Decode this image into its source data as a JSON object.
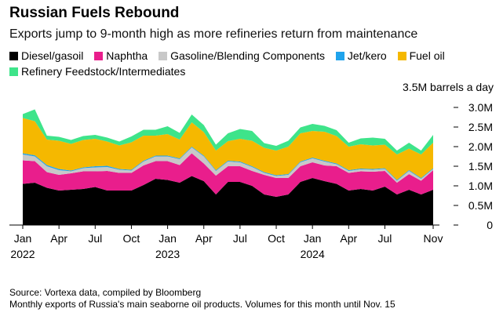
{
  "header": {
    "title": "Russian Fuels Rebound",
    "subtitle": "Exports jump to 9-month high as more refineries return from maintenance"
  },
  "legend": [
    {
      "name": "Diesel/gasoil",
      "color": "#000000"
    },
    {
      "name": "Naphtha",
      "color": "#e91e8c"
    },
    {
      "name": "Gasoline/Blending Components",
      "color": "#c8c8c8"
    },
    {
      "name": "Jet/kero",
      "color": "#1fa3ec"
    },
    {
      "name": "Fuel oil",
      "color": "#f5b800"
    },
    {
      "name": "Refinery Feedstock/Intermediates",
      "color": "#3ee48a"
    }
  ],
  "footer": {
    "source": "Source: Vortexa data, compiled by Bloomberg",
    "note": "Monthly exports of Russia's main seaborne oil products. Volumes for this month until Nov. 15"
  },
  "chart_data": {
    "type": "area",
    "stacked": true,
    "unit_label": "3.5M barrels a day",
    "ylim": [
      0,
      3.5
    ],
    "y_ticks": [
      {
        "value": 0,
        "label": "0"
      },
      {
        "value": 0.5,
        "label": "0.5M"
      },
      {
        "value": 1.0,
        "label": "1.0M"
      },
      {
        "value": 1.5,
        "label": "1.5M"
      },
      {
        "value": 2.0,
        "label": "2.0M"
      },
      {
        "value": 2.5,
        "label": "2.5M"
      },
      {
        "value": 3.0,
        "label": "3.0M"
      }
    ],
    "x_ticks": [
      {
        "index": 0,
        "month": "Jan",
        "year": "2022"
      },
      {
        "index": 3,
        "month": "Apr",
        "year": ""
      },
      {
        "index": 6,
        "month": "Jul",
        "year": ""
      },
      {
        "index": 9,
        "month": "Oct",
        "year": ""
      },
      {
        "index": 12,
        "month": "Jan",
        "year": "2023"
      },
      {
        "index": 15,
        "month": "Apr",
        "year": ""
      },
      {
        "index": 18,
        "month": "Jul",
        "year": ""
      },
      {
        "index": 21,
        "month": "Oct",
        "year": ""
      },
      {
        "index": 24,
        "month": "Jan",
        "year": "2024"
      },
      {
        "index": 27,
        "month": "Apr",
        "year": ""
      },
      {
        "index": 30,
        "month": "Jul",
        "year": ""
      },
      {
        "index": 34,
        "month": "Nov",
        "year": ""
      }
    ],
    "series": [
      {
        "name": "Diesel/gasoil",
        "color": "#000000",
        "values": [
          1.05,
          1.08,
          0.95,
          0.88,
          0.9,
          0.92,
          0.97,
          0.88,
          0.88,
          0.88,
          1.02,
          1.18,
          1.15,
          1.08,
          1.25,
          1.12,
          0.78,
          1.1,
          1.1,
          1.0,
          0.78,
          0.72,
          0.78,
          1.1,
          1.2,
          1.12,
          1.05,
          0.88,
          0.92,
          0.88,
          0.98,
          0.78,
          0.9,
          0.78,
          0.9
        ]
      },
      {
        "name": "Naphtha",
        "color": "#e91e8c",
        "values": [
          0.6,
          0.55,
          0.4,
          0.4,
          0.42,
          0.45,
          0.4,
          0.5,
          0.45,
          0.45,
          0.5,
          0.45,
          0.48,
          0.45,
          0.58,
          0.45,
          0.48,
          0.4,
          0.4,
          0.38,
          0.5,
          0.48,
          0.42,
          0.4,
          0.4,
          0.4,
          0.45,
          0.45,
          0.45,
          0.48,
          0.4,
          0.3,
          0.4,
          0.35,
          0.5
        ]
      },
      {
        "name": "Gasoline/Blending Components",
        "color": "#c8c8c8",
        "values": [
          0.15,
          0.12,
          0.15,
          0.12,
          0.05,
          0.08,
          0.1,
          0.1,
          0.08,
          0.06,
          0.1,
          0.12,
          0.12,
          0.15,
          0.15,
          0.18,
          0.12,
          0.12,
          0.1,
          0.1,
          0.05,
          0.05,
          0.08,
          0.1,
          0.1,
          0.1,
          0.05,
          0.05,
          0.05,
          0.05,
          0.05,
          0.05,
          0.08,
          0.05,
          0.03
        ]
      },
      {
        "name": "Jet/kero",
        "color": "#1fa3ec",
        "values": [
          0.03,
          0.03,
          0.03,
          0.03,
          0.02,
          0.02,
          0.03,
          0.03,
          0.02,
          0.02,
          0.02,
          0.02,
          0.02,
          0.02,
          0.02,
          0.02,
          0.02,
          0.02,
          0.02,
          0.02,
          0.02,
          0.02,
          0.02,
          0.02,
          0.02,
          0.02,
          0.02,
          0.02,
          0.02,
          0.02,
          0.02,
          0.02,
          0.02,
          0.02,
          0.02
        ]
      },
      {
        "name": "Fuel oil",
        "color": "#f5b800",
        "values": [
          0.9,
          0.87,
          0.65,
          0.72,
          0.68,
          0.7,
          0.7,
          0.62,
          0.6,
          0.7,
          0.64,
          0.51,
          0.55,
          0.48,
          0.62,
          0.6,
          0.5,
          0.5,
          0.58,
          0.65,
          0.62,
          0.63,
          0.7,
          0.72,
          0.68,
          0.74,
          0.7,
          0.6,
          0.62,
          0.6,
          0.6,
          0.65,
          0.55,
          0.6,
          0.65
        ]
      },
      {
        "name": "Refinery Feedstock/Intermediates",
        "color": "#3ee48a",
        "values": [
          0.1,
          0.3,
          0.1,
          0.1,
          0.1,
          0.1,
          0.1,
          0.1,
          0.1,
          0.15,
          0.15,
          0.15,
          0.2,
          0.17,
          0.2,
          0.18,
          0.15,
          0.2,
          0.25,
          0.25,
          0.12,
          0.12,
          0.15,
          0.15,
          0.18,
          0.15,
          0.15,
          0.1,
          0.15,
          0.2,
          0.15,
          0.1,
          0.15,
          0.1,
          0.2
        ]
      }
    ]
  }
}
